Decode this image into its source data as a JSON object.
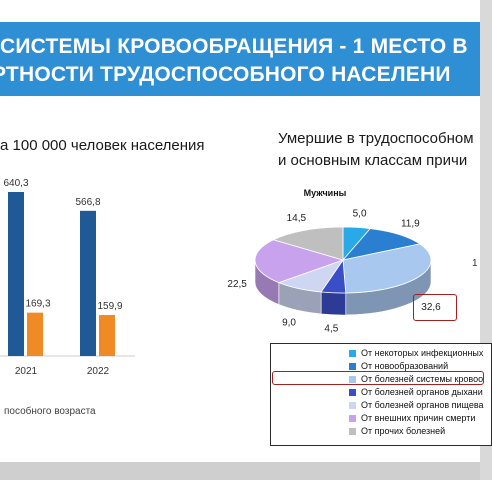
{
  "title": {
    "line1": "СИСТЕМЫ КРОВООБРАЩЕНИЯ - 1 МЕСТО В",
    "line2": "РТНОСТИ ТРУДОСПОСОБНОГО НАСЕЛЕНИ"
  },
  "left": {
    "subtitle": "а 100 000 человек населения",
    "caption": "пособного возраста"
  },
  "right": {
    "subtitle1": "Умершие в трудоспособном",
    "subtitle2": "и основным классам причи",
    "pie_label_stub": "1"
  },
  "chart_data": [
    {
      "type": "bar",
      "categories": [
        "2021",
        "2022"
      ],
      "series": [
        {
          "values": [
            640.3,
            566.8
          ],
          "labels": [
            "640,3",
            "566,8"
          ],
          "color": "#1f5a96"
        },
        {
          "values": [
            169.3,
            159.9
          ],
          "labels": [
            "169,3",
            "159,9"
          ],
          "color": "#f08a24"
        }
      ]
    },
    {
      "type": "pie",
      "title": "Мужчины",
      "values": [
        5.0,
        11.9,
        32.6,
        4.5,
        9.0,
        22.5,
        14.5
      ],
      "labels": [
        "5,0",
        "11,9",
        "32,6",
        "4,5",
        "9,0",
        "22,5",
        "14,5"
      ],
      "categories": [
        "От некоторых инфекционных",
        "От новообразований",
        "От болезней системы кровоо",
        "От болезней органов дыхани",
        "От болезней органов пищева",
        "От внешних причин смерти",
        "От прочих болезней"
      ],
      "colors": [
        "#29a9e8",
        "#2a7fd0",
        "#a8c8f0",
        "#3a4ec8",
        "#cfd6f2",
        "#c9a2ee",
        "#bfbfbf"
      ],
      "highlight": "От болезней системы кровоо"
    }
  ]
}
